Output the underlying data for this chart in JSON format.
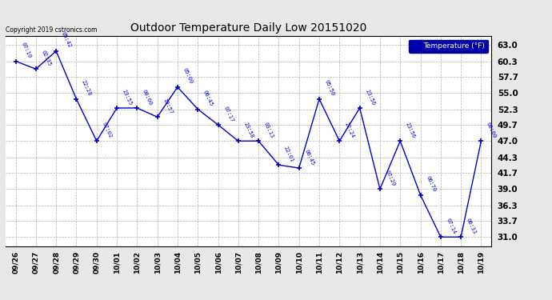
{
  "title": "Outdoor Temperature Daily Low 20151020",
  "legend_label": "Temperature (°F)",
  "copyright": "Copyright 2019 cstronics.com",
  "line_color": "#0000CC",
  "background_color": "#e8e8e8",
  "plot_bg_color": "#ffffff",
  "grid_color": "#aaaaaa",
  "x_labels": [
    "09/26",
    "09/27",
    "09/28",
    "09/29",
    "09/30",
    "10/01",
    "10/02",
    "10/03",
    "10/04",
    "10/05",
    "10/06",
    "10/07",
    "10/08",
    "10/09",
    "10/10",
    "10/11",
    "10/12",
    "10/13",
    "10/14",
    "10/15",
    "10/16",
    "10/17",
    "10/18",
    "10/19"
  ],
  "y_values": [
    60.3,
    59.0,
    62.0,
    54.0,
    47.0,
    52.5,
    52.5,
    51.0,
    56.0,
    52.3,
    49.7,
    47.0,
    47.0,
    43.0,
    42.5,
    54.0,
    47.0,
    52.5,
    39.0,
    47.0,
    38.0,
    31.0,
    31.0,
    47.0
  ],
  "annotations": [
    "07:10",
    "02:35",
    "05:42",
    "22:28",
    "07:02",
    "23:55",
    "00:00",
    "19:57",
    "05:00",
    "06:45",
    "07:17",
    "23:58",
    "03:13",
    "22:01",
    "06:45",
    "05:50",
    "22:24",
    "23:56",
    "07:20",
    "23:56",
    "06:70",
    "07:14",
    "06:33",
    "00:00"
  ],
  "yticks": [
    31.0,
    33.7,
    36.3,
    39.0,
    41.7,
    44.3,
    47.0,
    49.7,
    52.3,
    55.0,
    57.7,
    60.3,
    63.0
  ],
  "ylim": [
    29.5,
    64.5
  ]
}
